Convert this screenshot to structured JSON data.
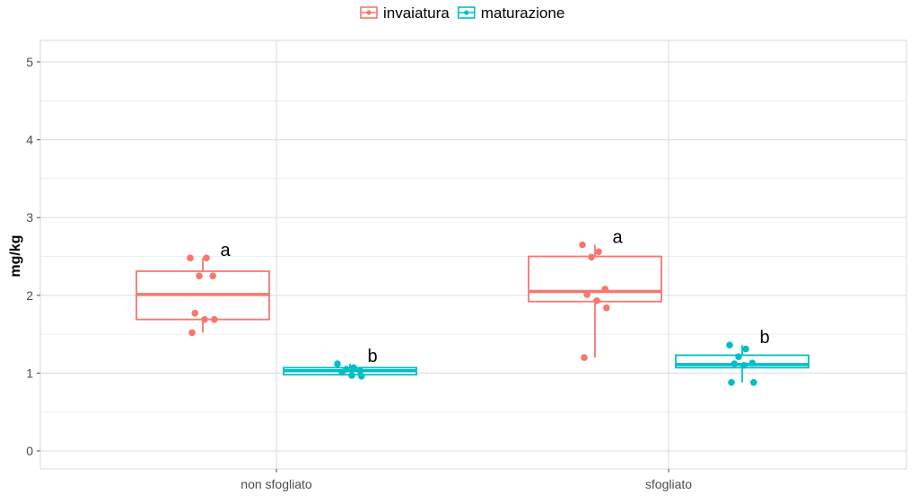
{
  "chart_data": {
    "type": "box",
    "title": "",
    "xlabel": "",
    "ylabel": "mg/kg",
    "ylim": [
      0,
      5
    ],
    "yticks": [
      "0",
      "1",
      "2",
      "3",
      "4",
      "5"
    ],
    "grid": true,
    "legend_position": "top",
    "categories": [
      "non sfogliato",
      "sfogliato"
    ],
    "series": [
      {
        "name": "invaiatura",
        "color": "#F8766D",
        "boxes": [
          {
            "category": "non sfogliato",
            "q1": 1.69,
            "median": 2.01,
            "q3": 2.31,
            "whisker_low": 1.52,
            "whisker_high": 2.48,
            "points": [
              2.48,
              2.48,
              2.25,
              2.25,
              1.77,
              1.69,
              1.69,
              1.52
            ],
            "letter": "a"
          },
          {
            "category": "sfogliato",
            "q1": 1.92,
            "median": 2.05,
            "q3": 2.5,
            "whisker_low": 1.2,
            "whisker_high": 2.65,
            "points": [
              2.65,
              2.56,
              2.49,
              2.08,
              2.01,
              1.93,
              1.84,
              1.2
            ],
            "letter": "a"
          }
        ]
      },
      {
        "name": "maturazione",
        "color": "#00BFC4",
        "boxes": [
          {
            "category": "non sfogliato",
            "q1": 0.98,
            "median": 1.03,
            "q3": 1.07,
            "whisker_low": 0.96,
            "whisker_high": 1.12,
            "points": [
              1.12,
              1.07,
              1.05,
              1.03,
              1.01,
              0.97,
              0.96
            ],
            "letter": "b"
          },
          {
            "category": "sfogliato",
            "q1": 1.07,
            "median": 1.11,
            "q3": 1.23,
            "whisker_low": 0.88,
            "whisker_high": 1.36,
            "points": [
              1.36,
              1.31,
              1.21,
              1.13,
              1.12,
              1.1,
              0.88,
              0.88
            ],
            "letter": "b"
          }
        ]
      }
    ]
  }
}
